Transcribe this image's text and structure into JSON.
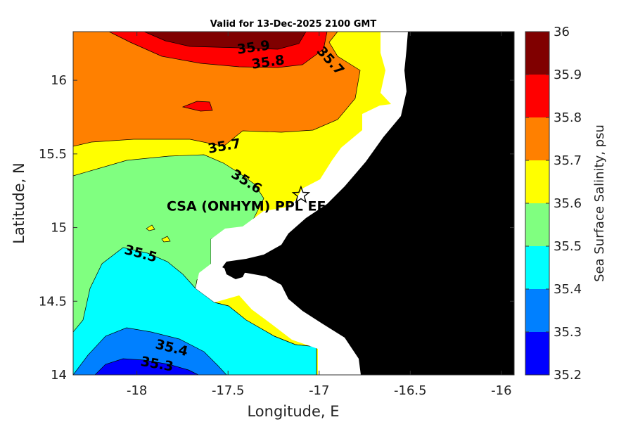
{
  "chart_data": {
    "type": "heatmap",
    "title": "Valid for 13-Dec-2025 2100 GMT",
    "xlabel": "Longitude, E",
    "ylabel": "Latitude, N",
    "xlim": [
      -18.35,
      -15.93
    ],
    "ylim": [
      14.0,
      16.33
    ],
    "x_ticks": [
      {
        "value": -18,
        "label": "-18"
      },
      {
        "value": -17.5,
        "label": "-17.5"
      },
      {
        "value": -17,
        "label": "-17"
      },
      {
        "value": -16.5,
        "label": "-16.5"
      },
      {
        "value": -16,
        "label": "-16"
      }
    ],
    "y_ticks": [
      {
        "value": 14,
        "label": "14"
      },
      {
        "value": 14.5,
        "label": "14.5"
      },
      {
        "value": 15,
        "label": "15"
      },
      {
        "value": 15.5,
        "label": "15.5"
      },
      {
        "value": 16,
        "label": "16"
      }
    ],
    "colorbar": {
      "title": "Sea Surface Salinity, psu",
      "levels": [
        {
          "value": 35.2,
          "label": "35.2"
        },
        {
          "value": 35.3,
          "label": "35.3"
        },
        {
          "value": 35.4,
          "label": "35.4"
        },
        {
          "value": 35.5,
          "label": "35.5"
        },
        {
          "value": 35.6,
          "label": "35.6"
        },
        {
          "value": 35.7,
          "label": "35.7"
        },
        {
          "value": 35.8,
          "label": "35.8"
        },
        {
          "value": 35.9,
          "label": "35.9"
        },
        {
          "value": 36.0,
          "label": "36"
        }
      ],
      "colors": [
        "#0000ff",
        "#0080ff",
        "#00ffff",
        "#80ff80",
        "#ffff00",
        "#ff8000",
        "#ff0000",
        "#800000"
      ]
    },
    "contour_labels": [
      {
        "text": "35.9",
        "x": -17.36,
        "y": 16.22,
        "angle": -8
      },
      {
        "text": "35.8",
        "x": -17.28,
        "y": 16.12,
        "angle": -8
      },
      {
        "text": "35.7",
        "x": -16.94,
        "y": 16.13,
        "angle": 48
      },
      {
        "text": "35.7",
        "x": -17.52,
        "y": 15.55,
        "angle": -10
      },
      {
        "text": "35.6",
        "x": -17.4,
        "y": 15.31,
        "angle": 32
      },
      {
        "text": "35.5",
        "x": -17.98,
        "y": 14.82,
        "angle": 15
      },
      {
        "text": "35.4",
        "x": -17.81,
        "y": 14.18,
        "angle": 14
      },
      {
        "text": "35.3",
        "x": -17.89,
        "y": 14.07,
        "angle": 10
      }
    ],
    "site": {
      "label": "CSA (ONHYM) PPL EE",
      "lon": -17.1,
      "lat": 15.22,
      "marker": "star"
    }
  }
}
